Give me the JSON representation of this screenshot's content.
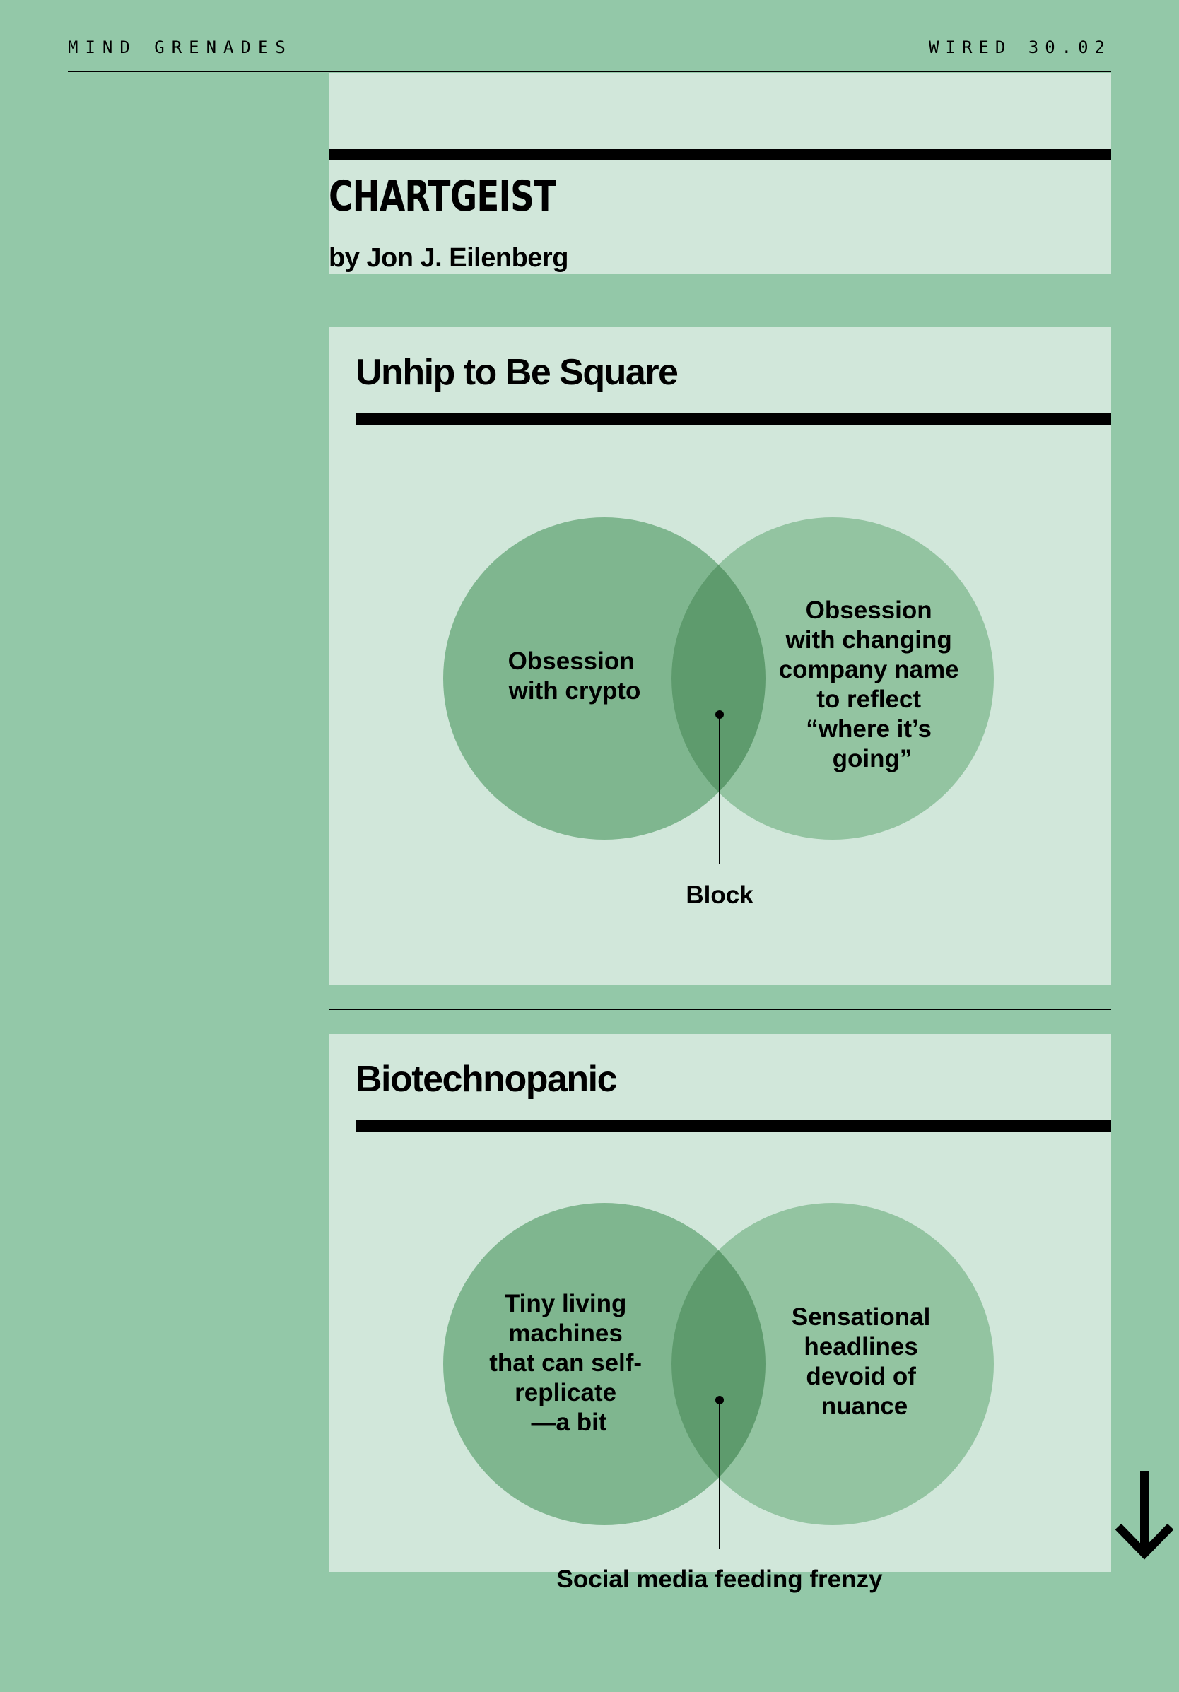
{
  "header": {
    "section": "MIND GRENADES",
    "issue": "WIRED 30.02"
  },
  "article": {
    "title": "CHARTGEIST",
    "byline": "by Jon J. Eilenberg"
  },
  "charts": [
    {
      "title": "Unhip to Be Square",
      "left_label": [
        "Obsession",
        "with crypto"
      ],
      "right_label": [
        "Obsession",
        "with changing",
        "company name",
        "to reflect",
        "“where it’s",
        "going”"
      ],
      "intersection_label": "Block"
    },
    {
      "title": "Biotechnopanic",
      "left_label": [
        "Tiny living",
        "machines",
        "that can self-",
        "replicate",
        "—a bit"
      ],
      "right_label": [
        "Sensational",
        "headlines",
        "devoid of",
        "nuance"
      ],
      "intersection_label": "Social media feeding frenzy"
    }
  ],
  "colors": {
    "background": "#93c8a8",
    "panel": "#d1e7da",
    "left_circle": "#7fb68f",
    "right_circle": "#93c4a1",
    "overlap": "#5e9b6d"
  },
  "icons": {
    "scroll": "arrow-down-icon"
  }
}
